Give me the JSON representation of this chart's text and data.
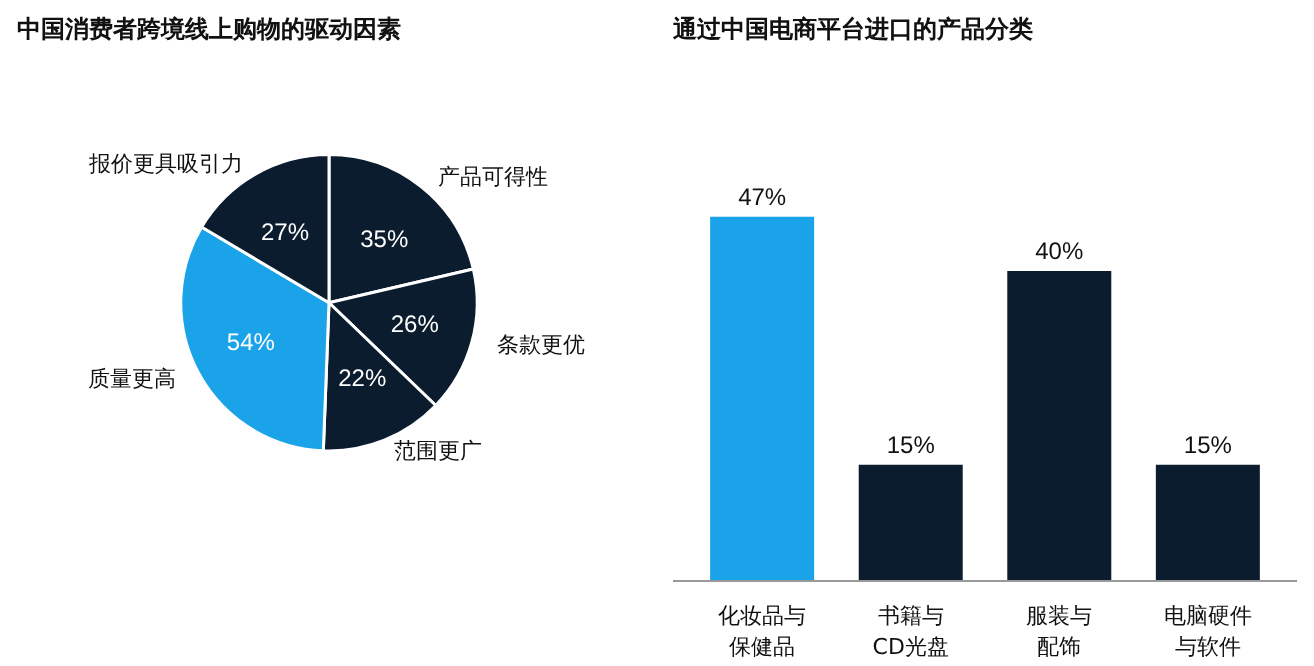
{
  "chart_data": [
    {
      "type": "pie",
      "title": "中国消费者跨境线上购物的驱动因素",
      "categories": [
        "产品可得性",
        "条款更优",
        "范围更广",
        "质量更高",
        "报价更具吸引力"
      ],
      "values": [
        35,
        26,
        22,
        54,
        27
      ],
      "value_labels": [
        "35%",
        "26%",
        "22%",
        "54%",
        "27%"
      ],
      "colors": [
        "#0b1c2e",
        "#0b1c2e",
        "#0b1c2e",
        "#1aa3e8",
        "#0b1c2e"
      ]
    },
    {
      "type": "bar",
      "title": "通过中国电商平台进口的产品分类",
      "categories": [
        "化妆品与保健品",
        "书籍与CD光盘",
        "服装与配饰",
        "电脑硬件与软件"
      ],
      "values": [
        47,
        15,
        40,
        15
      ],
      "value_labels": [
        "47%",
        "15%",
        "40%",
        "15%"
      ],
      "colors": [
        "#1aa3e8",
        "#0b1c2e",
        "#0b1c2e",
        "#0b1c2e"
      ]
    }
  ]
}
